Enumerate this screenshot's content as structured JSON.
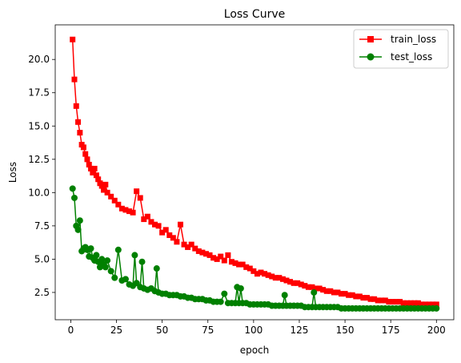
{
  "chart_data": {
    "type": "line",
    "title": "Loss Curve",
    "xlabel": "epoch",
    "ylabel": "Loss",
    "xlim": [
      -8.5,
      209.5
    ],
    "ylim": [
      0.45,
      22.6
    ],
    "xticks": [
      0,
      25,
      50,
      75,
      100,
      125,
      150,
      175,
      200
    ],
    "yticks": [
      2.5,
      5.0,
      7.5,
      10.0,
      12.5,
      15.0,
      17.5,
      20.0
    ],
    "ytick_labels": [
      "2.5",
      "5.0",
      "7.5",
      "10.0",
      "12.5",
      "15.0",
      "17.5",
      "20.0"
    ],
    "grid": false,
    "legend_position": "top-right",
    "series": [
      {
        "name": "train_loss",
        "color": "#ff0000",
        "marker": "square",
        "x": [
          1,
          2,
          3,
          4,
          5,
          6,
          7,
          8,
          9,
          10,
          11,
          12,
          13,
          14,
          15,
          16,
          17,
          18,
          19,
          20,
          22,
          24,
          26,
          28,
          30,
          32,
          34,
          36,
          38,
          40,
          42,
          44,
          46,
          48,
          50,
          52,
          54,
          56,
          58,
          60,
          62,
          64,
          66,
          68,
          70,
          72,
          74,
          76,
          78,
          80,
          82,
          84,
          86,
          88,
          90,
          92,
          94,
          96,
          98,
          100,
          102,
          104,
          106,
          108,
          110,
          112,
          114,
          116,
          118,
          120,
          122,
          124,
          126,
          128,
          130,
          132,
          134,
          136,
          138,
          140,
          142,
          144,
          146,
          148,
          150,
          152,
          154,
          156,
          158,
          160,
          162,
          164,
          166,
          168,
          170,
          172,
          174,
          176,
          178,
          180,
          182,
          184,
          186,
          188,
          190,
          192,
          194,
          196,
          198,
          200
        ],
        "values": [
          21.5,
          18.5,
          16.5,
          15.3,
          14.5,
          13.6,
          13.4,
          12.9,
          12.5,
          12.1,
          11.8,
          11.5,
          11.8,
          11.3,
          11.0,
          10.7,
          10.5,
          10.2,
          10.6,
          10.0,
          9.7,
          9.4,
          9.1,
          8.8,
          8.7,
          8.6,
          8.5,
          10.1,
          9.6,
          8.0,
          8.2,
          7.8,
          7.6,
          7.5,
          7.0,
          7.2,
          6.8,
          6.6,
          6.3,
          7.6,
          6.1,
          5.9,
          6.1,
          5.8,
          5.6,
          5.5,
          5.4,
          5.3,
          5.1,
          5.0,
          5.2,
          4.9,
          5.3,
          4.8,
          4.7,
          4.6,
          4.6,
          4.4,
          4.3,
          4.1,
          3.9,
          4.0,
          3.9,
          3.8,
          3.7,
          3.6,
          3.6,
          3.5,
          3.4,
          3.3,
          3.2,
          3.2,
          3.1,
          3.0,
          2.9,
          2.9,
          2.8,
          2.8,
          2.7,
          2.6,
          2.6,
          2.5,
          2.5,
          2.4,
          2.4,
          2.3,
          2.3,
          2.2,
          2.2,
          2.1,
          2.1,
          2.0,
          2.0,
          1.9,
          1.9,
          1.9,
          1.8,
          1.8,
          1.8,
          1.8,
          1.7,
          1.7,
          1.7,
          1.7,
          1.7,
          1.6,
          1.6,
          1.6,
          1.6,
          1.6
        ]
      },
      {
        "name": "test_loss",
        "color": "#008000",
        "marker": "circle",
        "x": [
          1,
          2,
          3,
          4,
          5,
          6,
          7,
          8,
          9,
          10,
          11,
          12,
          13,
          14,
          15,
          16,
          17,
          18,
          19,
          20,
          22,
          24,
          26,
          28,
          30,
          32,
          34,
          35,
          36,
          38,
          39,
          40,
          42,
          44,
          46,
          47,
          48,
          50,
          52,
          54,
          56,
          58,
          60,
          62,
          64,
          66,
          68,
          70,
          72,
          74,
          76,
          78,
          80,
          82,
          84,
          86,
          88,
          90,
          91,
          92,
          93,
          94,
          96,
          98,
          100,
          102,
          104,
          106,
          108,
          110,
          112,
          114,
          116,
          117,
          118,
          120,
          122,
          124,
          126,
          128,
          130,
          132,
          133,
          134,
          136,
          138,
          140,
          142,
          144,
          146,
          148,
          150,
          152,
          154,
          156,
          158,
          160,
          162,
          164,
          166,
          168,
          170,
          172,
          174,
          176,
          178,
          180,
          182,
          184,
          186,
          188,
          190,
          192,
          194,
          196,
          198,
          200
        ],
        "values": [
          10.3,
          9.6,
          7.5,
          7.2,
          7.9,
          5.6,
          5.8,
          5.9,
          5.7,
          5.2,
          5.8,
          5.1,
          4.9,
          5.3,
          4.8,
          4.4,
          5.0,
          4.6,
          4.4,
          4.9,
          4.1,
          3.6,
          5.7,
          3.4,
          3.5,
          3.1,
          3.0,
          5.3,
          3.2,
          2.9,
          4.8,
          2.8,
          2.7,
          2.8,
          2.6,
          4.3,
          2.5,
          2.4,
          2.4,
          2.3,
          2.3,
          2.3,
          2.2,
          2.2,
          2.1,
          2.1,
          2.0,
          2.0,
          2.0,
          1.9,
          1.9,
          1.8,
          1.8,
          1.8,
          2.4,
          1.7,
          1.7,
          1.7,
          2.9,
          1.7,
          2.8,
          1.7,
          1.7,
          1.6,
          1.6,
          1.6,
          1.6,
          1.6,
          1.6,
          1.5,
          1.5,
          1.5,
          1.5,
          2.3,
          1.5,
          1.5,
          1.5,
          1.5,
          1.5,
          1.4,
          1.4,
          1.4,
          2.5,
          1.4,
          1.4,
          1.4,
          1.4,
          1.4,
          1.4,
          1.4,
          1.3,
          1.3,
          1.3,
          1.3,
          1.3,
          1.3,
          1.3,
          1.3,
          1.3,
          1.3,
          1.3,
          1.3,
          1.3,
          1.3,
          1.3,
          1.3,
          1.3,
          1.3,
          1.3,
          1.3,
          1.3,
          1.3,
          1.3,
          1.3,
          1.3,
          1.3,
          1.3
        ]
      }
    ]
  }
}
